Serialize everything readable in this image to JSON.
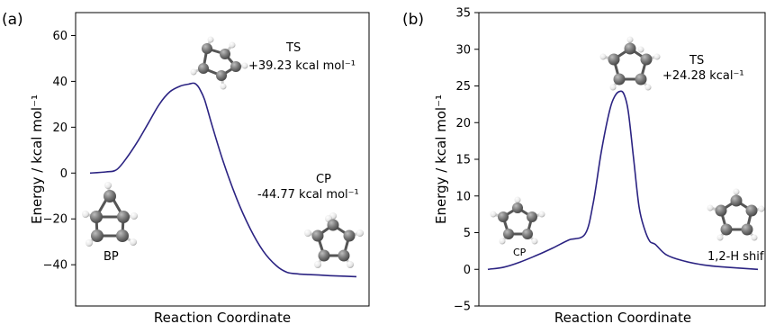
{
  "chart_data": [
    {
      "type": "line",
      "panel_label": "(a)",
      "xlabel": "Reaction Coordinate",
      "ylabel": "Energy / kcal mol⁻¹",
      "ylim": [
        -58,
        70
      ],
      "yticks": [
        -40,
        -20,
        0,
        20,
        40,
        60
      ],
      "ytick_labels": [
        "−40",
        "−20",
        "0",
        "20",
        "40",
        "60"
      ],
      "x_tick_labels": false,
      "grid": false,
      "line_color": "#2b2382",
      "series": [
        {
          "x": [
            0,
            0.06,
            0.1,
            0.14,
            0.18,
            0.22,
            0.26,
            0.3,
            0.34,
            0.37,
            0.39,
            0.4,
            0.41,
            0.43,
            0.46,
            0.5,
            0.55,
            0.6,
            0.65,
            0.7,
            0.74,
            0.78,
            0.82,
            0.86,
            0.9,
            1.0
          ],
          "y": [
            0,
            0.5,
            1.5,
            7,
            14,
            22,
            30,
            35.5,
            38,
            38.8,
            39.23,
            38.5,
            37,
            32,
            20,
            5,
            -11,
            -24,
            -34,
            -40.5,
            -43.3,
            -44.0,
            -44.3,
            -44.5,
            -44.77,
            -45.2
          ]
        }
      ],
      "annotations": [
        {
          "label": "TS",
          "value": "+39.23 kcal mol⁻¹"
        },
        {
          "label": "CP",
          "value": "-44.77 kcal mol⁻¹"
        },
        {
          "label": "BP"
        }
      ],
      "molecule_images": [
        "bicyclic-bp-molecule",
        "ts-molecule",
        "cyclopentadiene-cp-molecule"
      ]
    },
    {
      "type": "line",
      "panel_label": "(b)",
      "xlabel": "Reaction Coordinate",
      "ylabel": "Energy / kcal mol⁻¹",
      "ylim": [
        -5,
        35
      ],
      "yticks": [
        -5,
        0,
        5,
        10,
        15,
        20,
        25,
        30,
        35
      ],
      "ytick_labels": [
        "−5",
        "0",
        "5",
        "10",
        "15",
        "20",
        "25",
        "30",
        "35"
      ],
      "x_tick_labels": false,
      "grid": false,
      "line_color": "#2b2382",
      "series": [
        {
          "x": [
            0,
            0.06,
            0.12,
            0.18,
            0.24,
            0.3,
            0.36,
            0.39,
            0.42,
            0.45,
            0.47,
            0.49,
            0.505,
            0.52,
            0.54,
            0.56,
            0.58,
            0.6,
            0.62,
            0.66,
            0.72,
            0.8,
            0.88,
            1.0
          ],
          "y": [
            0,
            0.3,
            1.0,
            1.9,
            2.9,
            4.0,
            4.8,
            9,
            16,
            21.5,
            23.6,
            24.28,
            23.8,
            21.5,
            15,
            8.5,
            5.5,
            3.8,
            3.4,
            2.0,
            1.2,
            0.6,
            0.3,
            0
          ]
        }
      ],
      "annotations": [
        {
          "label": "TS",
          "value": "+24.28 kcal⁻¹"
        },
        {
          "label": "CP"
        },
        {
          "label": "1,2-H shif"
        }
      ],
      "molecule_images": [
        "cp-molecule-left",
        "ts-molecule",
        "cp-molecule-right"
      ]
    }
  ]
}
